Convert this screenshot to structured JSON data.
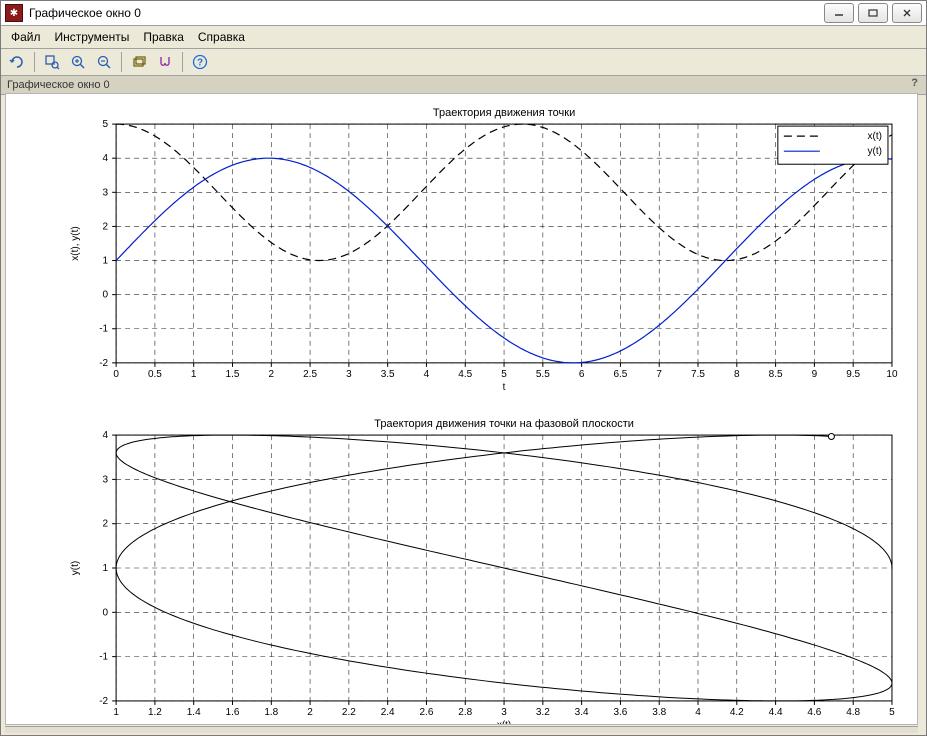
{
  "window": {
    "title": "Графическое окно 0",
    "icon_glyph": "✱"
  },
  "menubar": {
    "items": [
      "Файл",
      "Инструменты",
      "Правка",
      "Справка"
    ]
  },
  "toolbar": {
    "icons": [
      {
        "name": "rotate-icon",
        "color": "#2a5fb4"
      },
      {
        "sep": true
      },
      {
        "name": "zoom-area-icon",
        "color": "#2a5fb4"
      },
      {
        "name": "zoom-in-icon",
        "color": "#2a5fb4"
      },
      {
        "name": "zoom-out-icon",
        "color": "#2a5fb4"
      },
      {
        "sep": true
      },
      {
        "name": "pan-icon",
        "color": "#6b5b00"
      },
      {
        "name": "toggle-icon",
        "color": "#9a2fa8"
      },
      {
        "sep": true
      },
      {
        "name": "help-icon",
        "color": "#1e6fd9"
      }
    ]
  },
  "info_strip": {
    "label": "Графическое окно 0",
    "help_glyph": "?"
  },
  "chart1": {
    "type": "line",
    "title": "Траектория движения точки",
    "xlabel": "t",
    "ylabel": "x(t), y(t)",
    "xlim": [
      0,
      10
    ],
    "ylim": [
      -2,
      5
    ],
    "xtick_step": 0.5,
    "ytick_step": 1,
    "grid": true,
    "grid_color": "#000000",
    "grid_dash": [
      5,
      4
    ],
    "axis_color": "#000000",
    "background_color": "#ffffff",
    "series": [
      {
        "name": "x(t)",
        "color": "#000000",
        "dash": [
          8,
          5
        ],
        "width": 1.2,
        "fn": {
          "type": "cos",
          "amp": 2,
          "offset": 3,
          "freq": 1.2,
          "phase": 0
        }
      },
      {
        "name": "y(t)",
        "color": "#0020d0",
        "dash": null,
        "width": 1.2,
        "fn": {
          "type": "sin",
          "amp": 3,
          "offset": 1,
          "freq": 0.8,
          "phase": 0
        }
      }
    ],
    "legend": {
      "position": "top-right",
      "border_color": "#000000",
      "bg": "#ffffff"
    }
  },
  "chart2": {
    "type": "phase",
    "title": "Траектория движения точки на фазовой плоскости",
    "xlabel": "x(t)",
    "ylabel": "y(t)",
    "xlim": [
      1,
      5
    ],
    "ylim": [
      -2,
      4
    ],
    "xtick_step": 0.2,
    "ytick_step": 1,
    "grid": true,
    "grid_color": "#000000",
    "grid_dash": [
      5,
      4
    ],
    "axis_color": "#000000",
    "background_color": "#ffffff",
    "curve": {
      "color": "#000000",
      "width": 1.0,
      "x_fn": {
        "type": "cos",
        "amp": 2,
        "offset": 3,
        "freq": 1.2,
        "phase": 0
      },
      "y_fn": {
        "type": "sin",
        "amp": 3,
        "offset": 1,
        "freq": 0.8,
        "phase": 0
      },
      "t_range": [
        0,
        10
      ],
      "samples": 600,
      "end_marker": {
        "shape": "circle",
        "r": 3,
        "stroke": "#000000",
        "fill": "#ffffff"
      }
    }
  }
}
